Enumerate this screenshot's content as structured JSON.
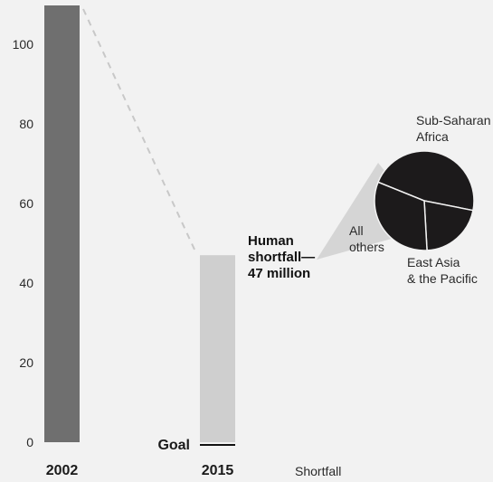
{
  "chart_data": {
    "type": "bar",
    "categories": [
      "2002",
      "2015"
    ],
    "values": [
      115,
      47
    ],
    "ylim": [
      0,
      110
    ],
    "yticks": [
      0,
      20,
      40,
      60,
      80,
      100
    ],
    "goal_label": "Goal",
    "shortfall_lines": [
      "Human",
      "shortfall—",
      "47 million"
    ],
    "xlabel_extra": "Shortfall",
    "breakdown": {
      "type": "pie",
      "slices": [
        {
          "label": "Sub-Saharan Africa",
          "label_lines": [
            "Sub-Saharan",
            "Africa"
          ],
          "value": 47
        },
        {
          "label": "East Asia & the Pacific",
          "label_lines": [
            "East Asia",
            "& the Pacific"
          ],
          "value": 21
        },
        {
          "label": "All others",
          "label_lines": [
            "All",
            "others"
          ],
          "value": 32
        }
      ]
    },
    "colors": {
      "bar_2002": "#6f6f6f",
      "bar_2015": "#cfcfcf",
      "pie_fill": "#1c1a1b",
      "pie_stroke": "#f2f2f2",
      "connector": "#c8c8c8"
    }
  }
}
